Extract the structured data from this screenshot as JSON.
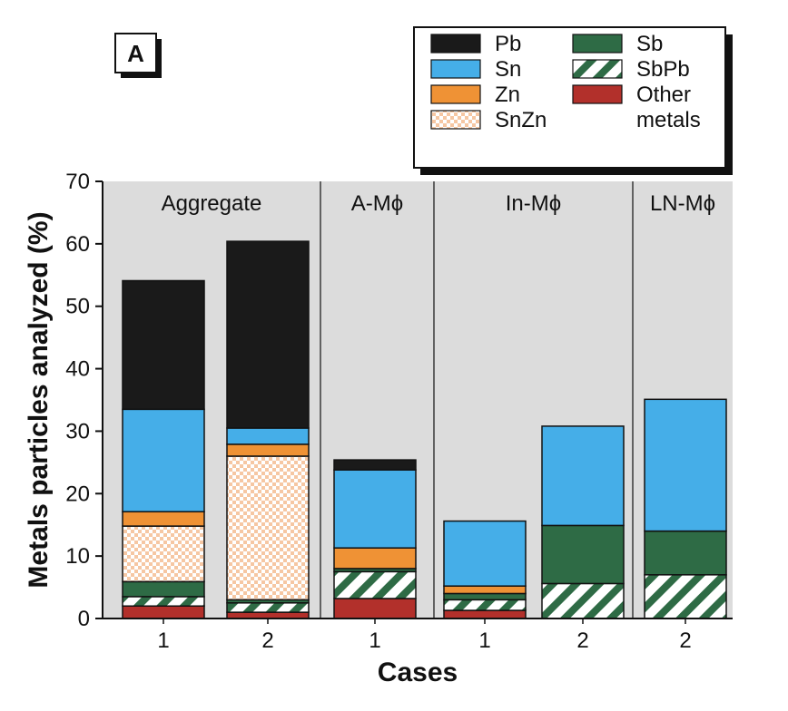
{
  "panel_label": "A",
  "colors": {
    "Pb": "#1a1a1a",
    "Sn": "#45aee8",
    "Zn": "#ef9235",
    "SnZn_checker": "#f6c7a3",
    "Sb": "#2e6b45",
    "SbPb_stripe": "#2e6b45",
    "Other metals": "#b2302b",
    "plot_background": "#dcdcdc"
  },
  "legend": {
    "placement": "top-right",
    "items": [
      {
        "key": "Pb",
        "label": "Pb"
      },
      {
        "key": "Sb",
        "label": "Sb"
      },
      {
        "key": "Sn",
        "label": "Sn"
      },
      {
        "key": "SbPb",
        "label": "SbPb"
      },
      {
        "key": "Zn",
        "label": "Zn"
      },
      {
        "key": "Other metals",
        "label": "Other",
        "label2": "metals"
      },
      {
        "key": "SnZn",
        "label": "SnZn"
      }
    ]
  },
  "chart_data": {
    "type": "bar",
    "stacked": true,
    "ylabel": "Metals particles analyzed (%)",
    "xlabel": "Cases",
    "ylim": [
      0,
      70
    ],
    "yticks": [
      0,
      10,
      20,
      30,
      40,
      50,
      60,
      70
    ],
    "grid": false,
    "groups": [
      {
        "name": "Aggregate",
        "bars": 2
      },
      {
        "name": "A-Mϕ",
        "bars": 1
      },
      {
        "name": "In-Mϕ",
        "bars": 2
      },
      {
        "name": "LN-Mϕ",
        "bars": 1
      }
    ],
    "categories": [
      "1",
      "2",
      "1",
      "1",
      "2",
      "2"
    ],
    "stack_order": [
      "Other metals",
      "SbPb",
      "Sb",
      "SnZn",
      "Zn",
      "Sn",
      "Pb"
    ],
    "series": [
      {
        "name": "Other metals",
        "values": [
          2.0,
          1.0,
          3.2,
          1.3,
          0,
          0
        ]
      },
      {
        "name": "SbPb",
        "values": [
          1.5,
          1.5,
          4.3,
          1.7,
          5.6,
          7.0
        ]
      },
      {
        "name": "Sb",
        "values": [
          2.4,
          0.5,
          0.5,
          1.0,
          9.3,
          7.0
        ]
      },
      {
        "name": "SnZn",
        "values": [
          8.9,
          23.0,
          0,
          0,
          0,
          0
        ]
      },
      {
        "name": "Zn",
        "values": [
          2.3,
          1.9,
          3.3,
          1.2,
          0,
          0
        ]
      },
      {
        "name": "Sn",
        "values": [
          16.4,
          2.6,
          12.5,
          10.4,
          15.9,
          21.1
        ]
      },
      {
        "name": "Pb",
        "values": [
          20.6,
          29.9,
          1.6,
          0,
          0,
          0
        ]
      }
    ]
  }
}
